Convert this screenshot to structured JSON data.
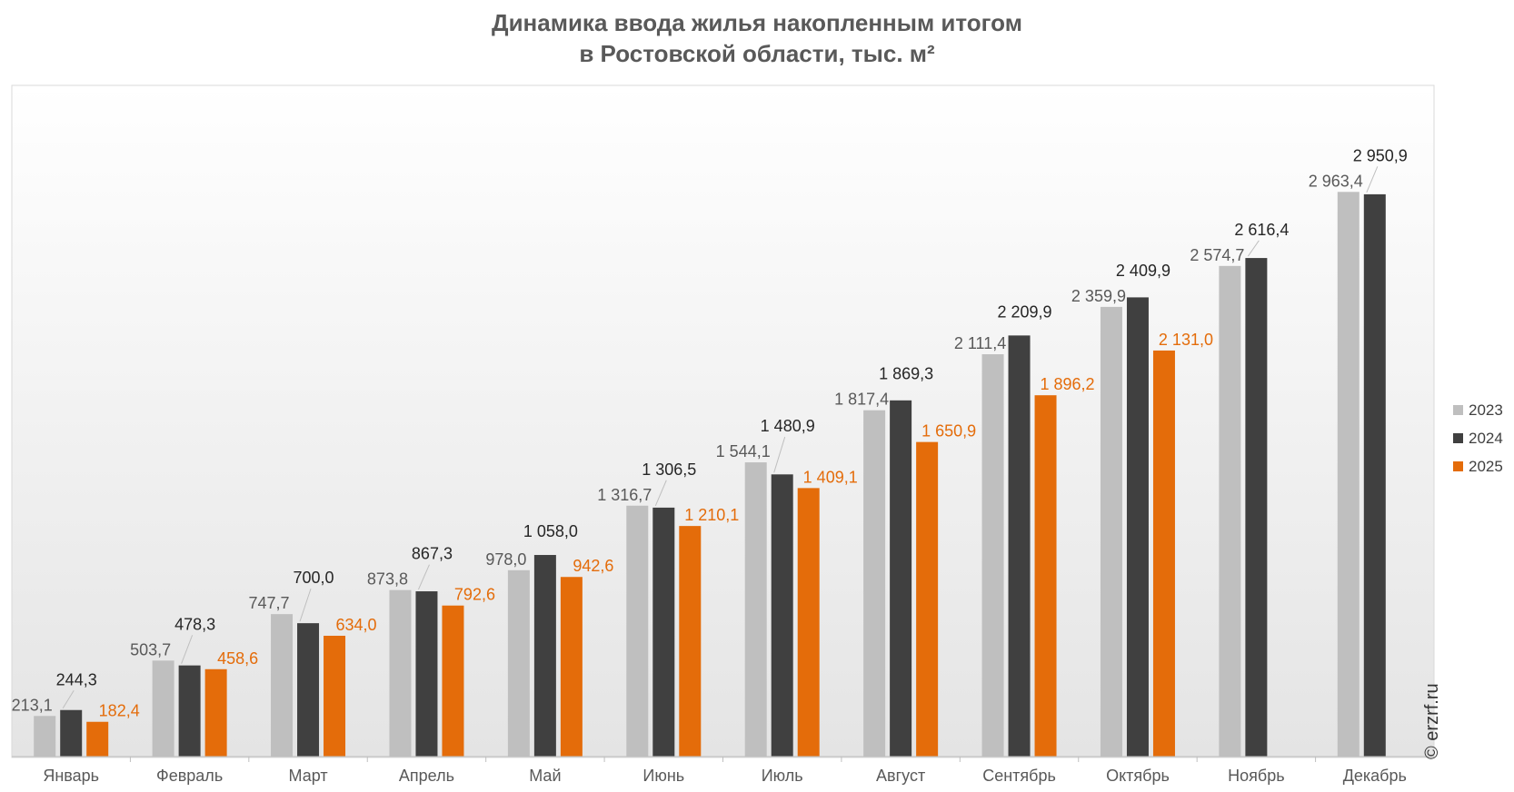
{
  "title_line1": "Динамика ввода жилья накопленным итогом",
  "title_line2": "в Ростовской области, тыс. м²",
  "watermark": "© erzrf.ru",
  "chart_data": {
    "type": "bar",
    "title": "Динамика ввода жилья накопленным итогом в Ростовской области, тыс. м²",
    "xlabel": "",
    "ylabel": "",
    "ylim": [
      0,
      3300
    ],
    "grid": false,
    "legend": "right",
    "categories": [
      "Январь",
      "Февраль",
      "Март",
      "Апрель",
      "Май",
      "Июнь",
      "Июль",
      "Август",
      "Сентябрь",
      "Октябрь",
      "Ноябрь",
      "Декабрь"
    ],
    "series": [
      {
        "name": "2023",
        "color": "#bfbfbf",
        "label_color": "#595959",
        "values": [
          213.1,
          503.7,
          747.7,
          873.8,
          978.0,
          1316.7,
          1544.1,
          1817.4,
          2111.4,
          2359.9,
          2574.7,
          2963.4
        ],
        "labels": [
          "213,1",
          "503,7",
          "747,7",
          "873,8",
          "978,0",
          "1 316,7",
          "1 544,1",
          "1 817,4",
          "2 111,4",
          "2 359,9",
          "2 574,7",
          "2 963,4"
        ]
      },
      {
        "name": "2024",
        "color": "#404040",
        "label_color": "#262626",
        "values": [
          244.3,
          478.3,
          700.0,
          867.3,
          1058.0,
          1306.5,
          1480.9,
          1869.3,
          2209.9,
          2409.9,
          2616.4,
          2950.9
        ],
        "labels": [
          "244,3",
          "478,3",
          "700,0",
          "867,3",
          "1 058,0",
          "1 306,5",
          "1 480,9",
          "1 869,3",
          "2 209,9",
          "2 409,9",
          "2 616,4",
          "2 950,9"
        ]
      },
      {
        "name": "2025",
        "color": "#e46c0a",
        "label_color": "#e46c0a",
        "values": [
          182.4,
          458.6,
          634.0,
          792.6,
          942.6,
          1210.1,
          1409.1,
          1650.9,
          1896.2,
          2131.0,
          null,
          null
        ],
        "labels": [
          "182,4",
          "458,6",
          "634,0",
          "792,6",
          "942,6",
          "1 210,1",
          "1 409,1",
          "1 650,9",
          "1 896,2",
          "2 131,0",
          null,
          null
        ]
      }
    ]
  }
}
